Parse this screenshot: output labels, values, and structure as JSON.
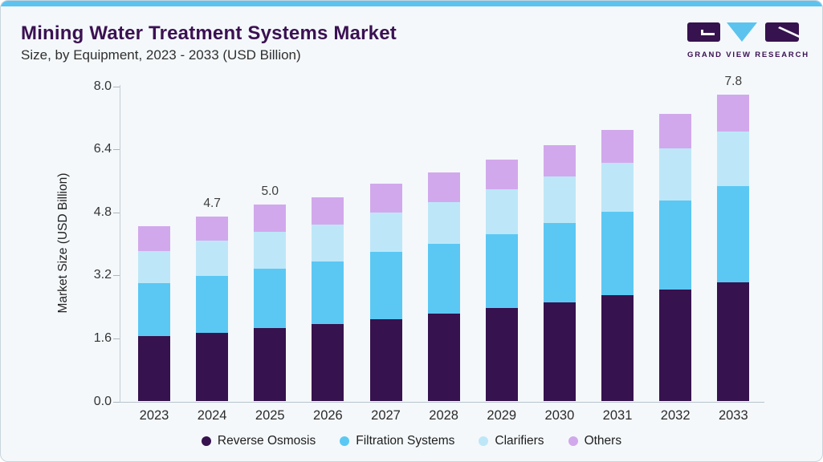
{
  "header": {
    "title": "Mining Water Treatment Systems Market",
    "subtitle": "Size, by Equipment, 2023 - 2033 (USD Billion)"
  },
  "logo": {
    "text": "GRAND VIEW RESEARCH",
    "brand_purple": "#36124e",
    "brand_blue": "#5cc3ef"
  },
  "colors": {
    "page_background": "#f4f8fb",
    "accent_bar": "#5cc3ef",
    "title_text": "#3b1152",
    "axis_line": "#c2cdd5"
  },
  "chart_data": {
    "type": "bar",
    "stacked": true,
    "title": "Mining Water Treatment Systems Market Size, by Equipment, 2023 - 2033 (USD Billion)",
    "xlabel": "",
    "ylabel": "Market Size (USD Billion)",
    "ylim": [
      0.0,
      8.0
    ],
    "yticks": [
      "0.0",
      "1.6",
      "3.2",
      "4.8",
      "6.4",
      "8.0"
    ],
    "grid": false,
    "legend_position": "bottom",
    "categories": [
      "2023",
      "2024",
      "2025",
      "2026",
      "2027",
      "2028",
      "2029",
      "2030",
      "2031",
      "2032",
      "2033"
    ],
    "series": [
      {
        "name": "Reverse Osmosis",
        "color": "#36124e",
        "values": [
          1.65,
          1.75,
          1.87,
          1.96,
          2.09,
          2.24,
          2.37,
          2.52,
          2.7,
          2.85,
          3.02
        ]
      },
      {
        "name": "Filtration Systems",
        "color": "#5bc8f4",
        "values": [
          1.35,
          1.43,
          1.51,
          1.6,
          1.7,
          1.77,
          1.88,
          2.01,
          2.12,
          2.26,
          2.44
        ]
      },
      {
        "name": "Clarifiers",
        "color": "#bde7f8",
        "values": [
          0.82,
          0.9,
          0.93,
          0.94,
          1.0,
          1.05,
          1.14,
          1.19,
          1.23,
          1.32,
          1.39
        ]
      },
      {
        "name": "Others",
        "color": "#d2a8ec",
        "values": [
          0.62,
          0.62,
          0.69,
          0.69,
          0.73,
          0.75,
          0.76,
          0.79,
          0.84,
          0.87,
          0.95
        ]
      }
    ],
    "totals": [
      4.44,
      4.7,
      5.0,
      5.19,
      5.52,
      5.81,
      6.15,
      6.51,
      6.89,
      7.3,
      7.8
    ],
    "annotations": [
      {
        "category_index": 1,
        "text": "4.7"
      },
      {
        "category_index": 2,
        "text": "5.0"
      },
      {
        "category_index": 10,
        "text": "7.8"
      }
    ]
  }
}
